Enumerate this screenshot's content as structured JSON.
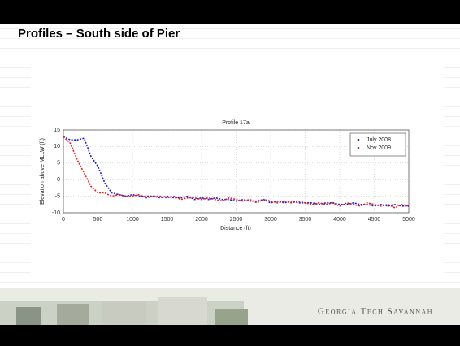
{
  "slide_title": "Profiles – South side of Pier",
  "footer": "Georgia Tech Savannah",
  "chart_data": {
    "type": "line",
    "title": "Profile 17a",
    "x_label": "Distance (ft)",
    "y_label": "Elevation above MLLW (ft)",
    "x": [
      0,
      100,
      200,
      300,
      400,
      500,
      600,
      700,
      800,
      900,
      1000,
      1100,
      1200,
      1300,
      1400,
      1500,
      1600,
      1700,
      1800,
      1900,
      2000,
      2100,
      2200,
      2300,
      2400,
      2500,
      2600,
      2700,
      2800,
      2900,
      3000,
      3100,
      3200,
      3300,
      3400,
      3500,
      3600,
      3700,
      3800,
      3900,
      4000,
      4100,
      4200,
      4300,
      4400,
      4500,
      4600,
      4700,
      4800,
      4900,
      5000
    ],
    "series": [
      {
        "name": "July 2008",
        "color": "#2020e0",
        "values": [
          13,
          12,
          12,
          12.5,
          7,
          4,
          -1,
          -4,
          -4.5,
          -5,
          -4.5,
          -5,
          -5,
          -5,
          -5.5,
          -5,
          -5.5,
          -5.5,
          -5,
          -6,
          -5.5,
          -6,
          -5.5,
          -6,
          -6,
          -6.5,
          -6,
          -6.5,
          -6.5,
          -6,
          -7,
          -6.5,
          -7,
          -6.5,
          -7,
          -7,
          -7,
          -7.5,
          -7,
          -7,
          -7.5,
          -7.5,
          -7,
          -7.5,
          -7.5,
          -8,
          -7.5,
          -8,
          -7.5,
          -8,
          -8
        ]
      },
      {
        "name": "Nov 2009",
        "color": "#e02020",
        "values": [
          13,
          11,
          6,
          2,
          -2,
          -4,
          -4,
          -5,
          -4.5,
          -5,
          -5,
          -4.5,
          -5.5,
          -5,
          -5,
          -5.5,
          -5,
          -6,
          -5.5,
          -5.5,
          -6,
          -5.5,
          -6,
          -6.5,
          -5.5,
          -6,
          -6.5,
          -6,
          -7,
          -6,
          -6.5,
          -7,
          -6.5,
          -7,
          -6.5,
          -7,
          -7.5,
          -7,
          -7.5,
          -7,
          -8,
          -7,
          -7.5,
          -8,
          -7,
          -7.5,
          -8,
          -7.5,
          -8.5,
          -7.5,
          -8
        ]
      }
    ],
    "xlim": [
      0,
      5000
    ],
    "xticks": [
      0,
      500,
      1000,
      1500,
      2000,
      2500,
      3000,
      3500,
      4000,
      4500,
      5000
    ],
    "ylim": [
      -10,
      15
    ],
    "yticks": [
      -10,
      -5,
      0,
      5,
      10,
      15
    ],
    "grid": true,
    "legend": "upper right"
  }
}
